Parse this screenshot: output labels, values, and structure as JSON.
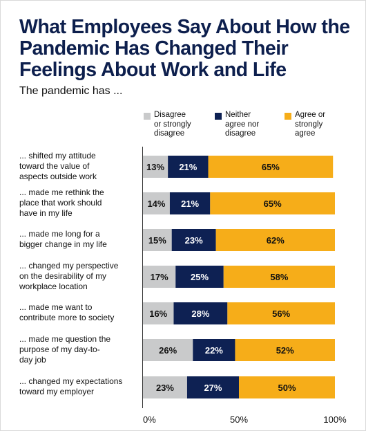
{
  "title": "What Employees Say About How the Pandemic Has Changed Their Feelings About Work and Life",
  "subtitle": "The pandemic has ...",
  "colors": {
    "disagree": "#c9cacb",
    "neutral": "#0e2153",
    "agree": "#f6ad19",
    "title": "#0d1f4d"
  },
  "chart_data": {
    "type": "bar",
    "orientation": "horizontal",
    "stacked": true,
    "categories": [
      "... shifted my attitude toward the value of aspects outside work",
      "... made me rethink the place that work should have in my life",
      "... made me long for a bigger change in my life",
      "... changed my perspective on the desirability of my workplace location",
      "... made me want to contribute more to society",
      "... made me question the purpose of my day-to-day job",
      "... changed my expectations toward my employer"
    ],
    "category_lines": [
      [
        "... shifted my attitude",
        "toward the value of",
        "aspects outside work"
      ],
      [
        "... made me rethink the",
        "place that work should",
        "have in my life"
      ],
      [
        "... made me long for a",
        "bigger change in my life"
      ],
      [
        "... changed my perspective",
        "on the desirability of my",
        "workplace location"
      ],
      [
        "... made me want to",
        "contribute more to society"
      ],
      [
        "... made me question the",
        "purpose of my day-to-",
        "day job"
      ],
      [
        "... changed my expectations",
        "toward my employer"
      ]
    ],
    "series": [
      {
        "name": "Disagree or strongly disagree",
        "legend_lines": [
          "Disagree",
          "or strongly",
          "disagree"
        ],
        "color_key": "disagree",
        "values": [
          13,
          14,
          15,
          17,
          16,
          26,
          23
        ]
      },
      {
        "name": "Neither agree nor disagree",
        "legend_lines": [
          "Neither",
          "agree nor",
          "disagree"
        ],
        "color_key": "neutral",
        "values": [
          21,
          21,
          23,
          25,
          28,
          22,
          27
        ]
      },
      {
        "name": "Agree or strongly agree",
        "legend_lines": [
          "Agree or",
          "strongly",
          "agree"
        ],
        "color_key": "agree",
        "values": [
          65,
          65,
          62,
          58,
          56,
          52,
          50
        ]
      }
    ],
    "value_suffix": "%",
    "xlim": [
      0,
      100
    ],
    "x_ticks": [
      "0%",
      "50%",
      "100%"
    ],
    "legend_position": "top",
    "grid": false
  }
}
